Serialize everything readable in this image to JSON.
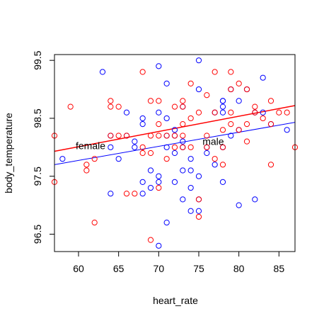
{
  "chart_data": {
    "type": "scatter",
    "title": "",
    "xlabel": "heart_rate",
    "ylabel": "body_temperature",
    "xlim": [
      57,
      87
    ],
    "ylim": [
      96.2,
      99.6
    ],
    "grid": false,
    "xticks": [
      60,
      65,
      70,
      75,
      80,
      85
    ],
    "yticks": [
      96.5,
      97.5,
      98.5,
      99.5
    ],
    "series": [
      {
        "group": "male",
        "color": "#0000FF",
        "points": [
          [
            58,
            97.8
          ],
          [
            63,
            99.3
          ],
          [
            64,
            98.0
          ],
          [
            64,
            97.2
          ],
          [
            64,
            98.2
          ],
          [
            65,
            97.8
          ],
          [
            66,
            98.6
          ],
          [
            66,
            98.2
          ],
          [
            67,
            98.1
          ],
          [
            67,
            98.0
          ],
          [
            68,
            98.4
          ],
          [
            68,
            98.5
          ],
          [
            68,
            97.4
          ],
          [
            68,
            97.2
          ],
          [
            69,
            97.6
          ],
          [
            69,
            97.3
          ],
          [
            70,
            99.4
          ],
          [
            70,
            98.6
          ],
          [
            70,
            97.5
          ],
          [
            70,
            97.4
          ],
          [
            70,
            96.3
          ],
          [
            71,
            99.1
          ],
          [
            71,
            98.2
          ],
          [
            71,
            98.0
          ],
          [
            71,
            96.7
          ],
          [
            71,
            98.5
          ],
          [
            72,
            98.3
          ],
          [
            72,
            98.2
          ],
          [
            72,
            97.9
          ],
          [
            72,
            97.4
          ],
          [
            73,
            98.0
          ],
          [
            73,
            97.6
          ],
          [
            73,
            97.1
          ],
          [
            73,
            98.1
          ],
          [
            73,
            98.7
          ],
          [
            74,
            97.8
          ],
          [
            74,
            97.6
          ],
          [
            74,
            97.3
          ],
          [
            74,
            96.9
          ],
          [
            75,
            99.5
          ],
          [
            75,
            99.0
          ],
          [
            75,
            97.5
          ],
          [
            75,
            97.1
          ],
          [
            75,
            96.9
          ],
          [
            76,
            98.0
          ],
          [
            76,
            97.9
          ],
          [
            77,
            98.6
          ],
          [
            77,
            97.7
          ],
          [
            78,
            98.8
          ],
          [
            78,
            98.8
          ],
          [
            78,
            98.7
          ],
          [
            78,
            98.6
          ],
          [
            78,
            98.0
          ],
          [
            78,
            97.4
          ],
          [
            79,
            99.0
          ],
          [
            79,
            98.2
          ],
          [
            80,
            98.8
          ],
          [
            80,
            98.3
          ],
          [
            80,
            97.0
          ],
          [
            81,
            99.0
          ],
          [
            82,
            98.6
          ],
          [
            82,
            97.1
          ],
          [
            83,
            99.2
          ],
          [
            83,
            98.6
          ],
          [
            84,
            98.4
          ],
          [
            86,
            98.3
          ]
        ]
      },
      {
        "group": "female",
        "color": "#FF0000",
        "points": [
          [
            57,
            98.2
          ],
          [
            57,
            97.4
          ],
          [
            59,
            98.7
          ],
          [
            61,
            97.7
          ],
          [
            61,
            97.6
          ],
          [
            62,
            97.8
          ],
          [
            62,
            96.7
          ],
          [
            64,
            98.8
          ],
          [
            64,
            98.7
          ],
          [
            64,
            98.2
          ],
          [
            65,
            98.7
          ],
          [
            65,
            98.2
          ],
          [
            66,
            98.2
          ],
          [
            66,
            97.2
          ],
          [
            67,
            97.2
          ],
          [
            68,
            99.3
          ],
          [
            68,
            98.0
          ],
          [
            68,
            97.9
          ],
          [
            69,
            98.8
          ],
          [
            69,
            98.2
          ],
          [
            69,
            97.9
          ],
          [
            69,
            96.4
          ],
          [
            70,
            98.8
          ],
          [
            70,
            98.4
          ],
          [
            70,
            98.2
          ],
          [
            70,
            97.3
          ],
          [
            71,
            98.2
          ],
          [
            71,
            97.8
          ],
          [
            72,
            98.7
          ],
          [
            72,
            98.2
          ],
          [
            72,
            98.0
          ],
          [
            73,
            98.8
          ],
          [
            73,
            98.7
          ],
          [
            73,
            98.4
          ],
          [
            73,
            98.2
          ],
          [
            73,
            98.0
          ],
          [
            74,
            99.1
          ],
          [
            74,
            98.5
          ],
          [
            74,
            98.0
          ],
          [
            75,
            98.6
          ],
          [
            75,
            97.1
          ],
          [
            75,
            96.8
          ],
          [
            76,
            98.9
          ],
          [
            76,
            98.2
          ],
          [
            76,
            98.0
          ],
          [
            77,
            99.3
          ],
          [
            77,
            98.6
          ],
          [
            77,
            97.8
          ],
          [
            78,
            98.3
          ],
          [
            78,
            98.0
          ],
          [
            78,
            97.7
          ],
          [
            79,
            99.3
          ],
          [
            79,
            99.0
          ],
          [
            79,
            98.6
          ],
          [
            79,
            98.4
          ],
          [
            80,
            99.1
          ],
          [
            80,
            98.3
          ],
          [
            81,
            99.0
          ],
          [
            81,
            98.4
          ],
          [
            81,
            98.1
          ],
          [
            82,
            98.7
          ],
          [
            82,
            98.6
          ],
          [
            83,
            98.5
          ],
          [
            84,
            98.8
          ],
          [
            84,
            97.7
          ],
          [
            84,
            98.4
          ],
          [
            85,
            98.6
          ],
          [
            86,
            98.6
          ],
          [
            87,
            98.0
          ]
        ]
      }
    ],
    "fit_lines": [
      {
        "group": "male",
        "color": "#0000FF",
        "x": [
          57,
          87
        ],
        "y": [
          97.7,
          98.43
        ]
      },
      {
        "group": "female",
        "color": "#FF0000",
        "x": [
          57,
          87
        ],
        "y": [
          97.93,
          98.72
        ]
      }
    ],
    "annotations": [
      {
        "text": "female",
        "x": 61.5,
        "y": 98.03
      },
      {
        "text": "male",
        "x": 76.8,
        "y": 98.1
      }
    ]
  }
}
